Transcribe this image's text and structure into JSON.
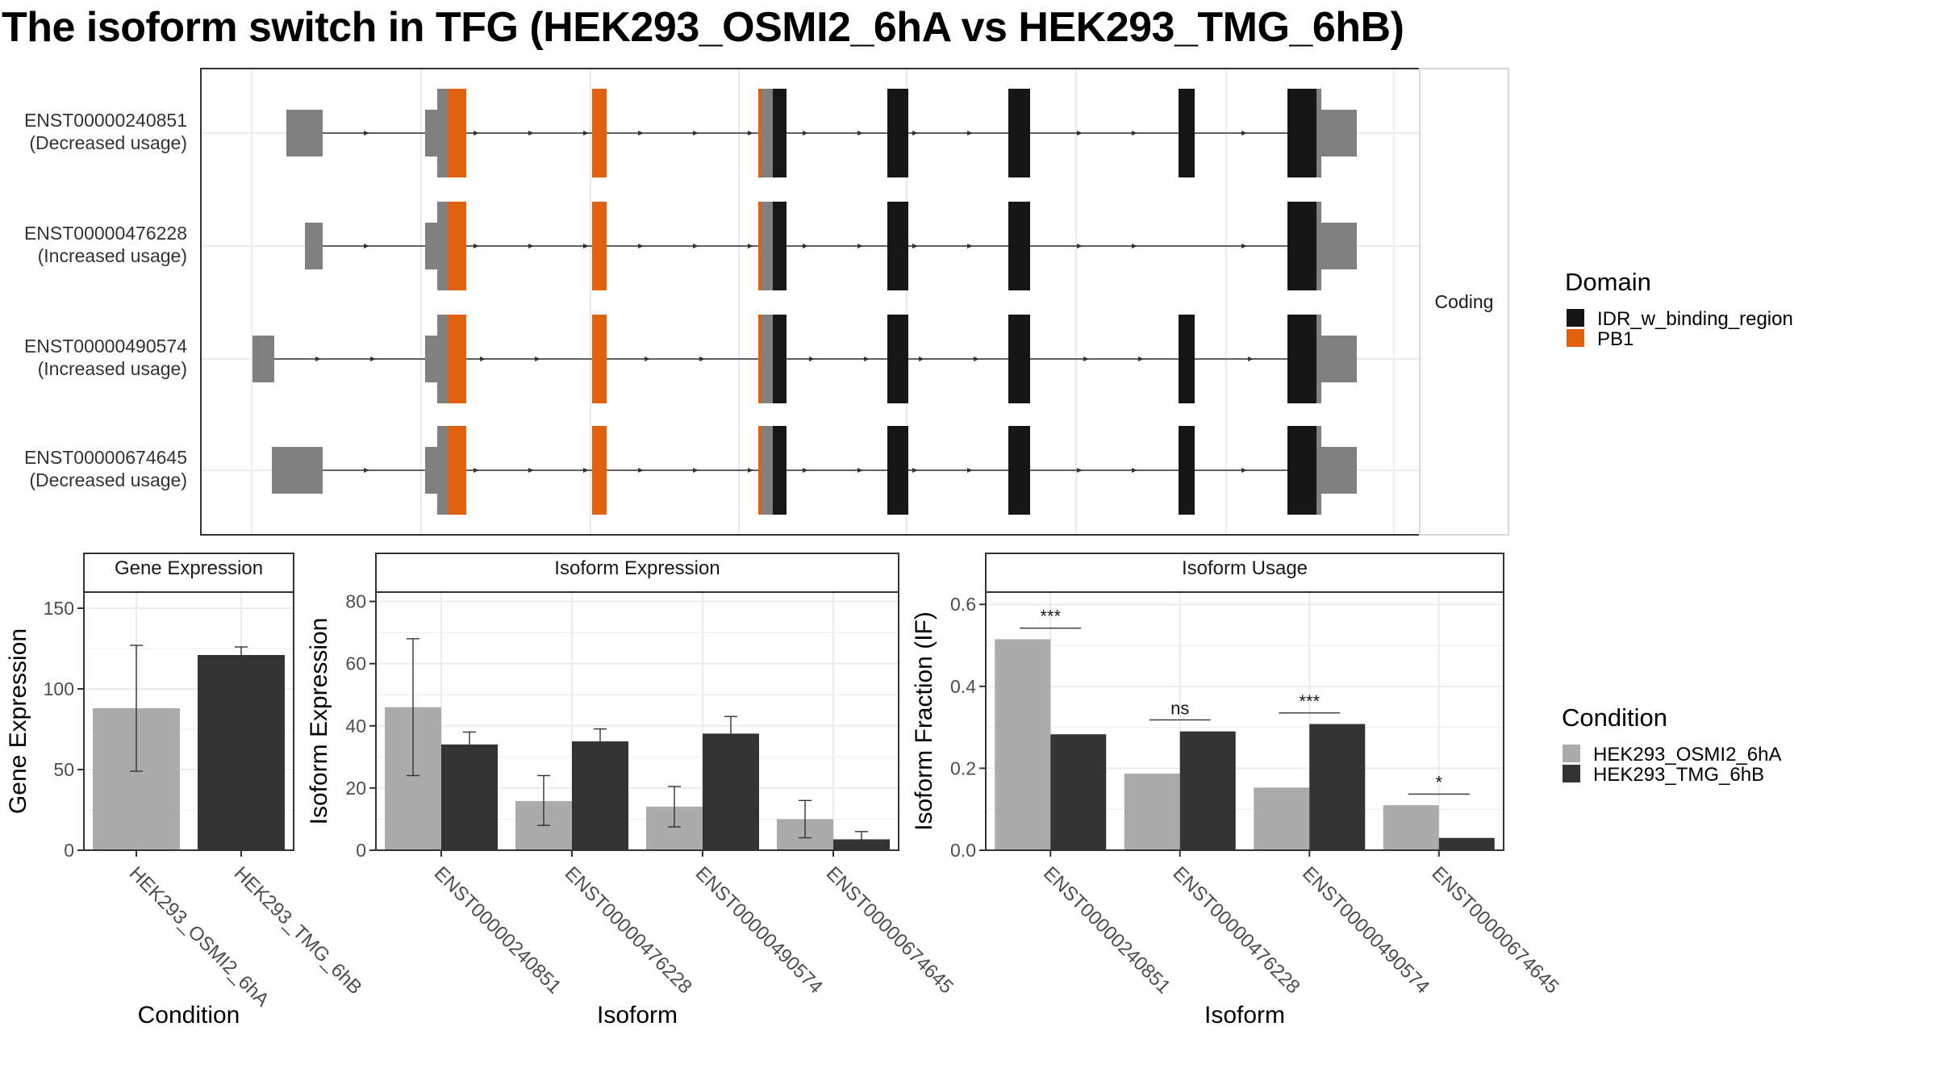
{
  "title": "The isoform switch in TFG (HEK293_OSMI2_6hA vs HEK293_TMG_6hB)",
  "colors": {
    "cond1": "#ABABAB",
    "cond2": "#333333",
    "idr": "#161616",
    "pb1": "#E0620F",
    "utr": "#808080",
    "grid": "#EBEBEB",
    "strip_bg": "#FFFFFF",
    "border": "#333333"
  },
  "chart_data": [
    {
      "type": "gene-structure",
      "strip_label": "Coding",
      "rows": [
        {
          "id": "ENST00000240851",
          "usage": "(Decreased usage)"
        },
        {
          "id": "ENST00000476228",
          "usage": "(Increased usage)"
        },
        {
          "id": "ENST00000490574",
          "usage": "(Increased usage)"
        },
        {
          "id": "ENST00000674645",
          "usage": "(Decreased usage)"
        }
      ],
      "legend": {
        "title": "Domain",
        "items": [
          {
            "label": "IDR_w_binding_region",
            "color": "#161616"
          },
          {
            "label": "PB1",
            "color": "#E0620F"
          }
        ]
      }
    },
    {
      "type": "bar",
      "title": "Gene Expression",
      "xlabel": "Condition",
      "ylabel": "Gene Expression",
      "ylim": [
        0,
        160
      ],
      "yticks": [
        0,
        50,
        100,
        150
      ],
      "categories": [
        "HEK293_OSMI2_6hA",
        "HEK293_TMG_6hB"
      ],
      "values": [
        88,
        121
      ],
      "errors": [
        [
          49,
          127
        ],
        [
          116,
          126
        ]
      ]
    },
    {
      "type": "bar",
      "title": "Isoform Expression",
      "xlabel": "Isoform",
      "ylabel": "Isoform Expression",
      "ylim": [
        0,
        83
      ],
      "yticks": [
        0,
        20,
        40,
        60,
        80
      ],
      "categories": [
        "ENST00000240851",
        "ENST00000476228",
        "ENST00000490574",
        "ENST00000674645"
      ],
      "series": [
        {
          "name": "HEK293_OSMI2_6hA",
          "values": [
            46,
            15.8,
            14,
            10
          ],
          "errors": [
            [
              24,
              68
            ],
            [
              8,
              24
            ],
            [
              7.5,
              20.5
            ],
            [
              4,
              16
            ]
          ]
        },
        {
          "name": "HEK293_TMG_6hB",
          "values": [
            34,
            35,
            37.5,
            3.5
          ],
          "errors": [
            [
              31,
              38
            ],
            [
              31,
              39
            ],
            [
              33,
              43
            ],
            [
              1.5,
              6
            ]
          ]
        }
      ]
    },
    {
      "type": "bar",
      "title": "Isoform Usage",
      "xlabel": "Isoform",
      "ylabel": "Isoform Fraction (IF)",
      "ylim": [
        0,
        0.63
      ],
      "yticks": [
        0.0,
        0.2,
        0.4,
        0.6
      ],
      "ytick_labels": [
        "0.0",
        "0.2",
        "0.4",
        "0.6"
      ],
      "categories": [
        "ENST00000240851",
        "ENST00000476228",
        "ENST00000490574",
        "ENST00000674645"
      ],
      "series": [
        {
          "name": "HEK293_OSMI2_6hA",
          "values": [
            0.515,
            0.187,
            0.153,
            0.11
          ]
        },
        {
          "name": "HEK293_TMG_6hB",
          "values": [
            0.283,
            0.29,
            0.308,
            0.03
          ]
        }
      ],
      "significance": [
        {
          "label": "***",
          "y": 0.542
        },
        {
          "label": "ns",
          "y": 0.318
        },
        {
          "label": "***",
          "y": 0.335
        },
        {
          "label": "*",
          "y": 0.137
        }
      ],
      "legend": {
        "title": "Condition",
        "items": [
          {
            "label": "HEK293_OSMI2_6hA",
            "color": "#ABABAB"
          },
          {
            "label": "HEK293_TMG_6hB",
            "color": "#333333"
          }
        ]
      }
    }
  ]
}
